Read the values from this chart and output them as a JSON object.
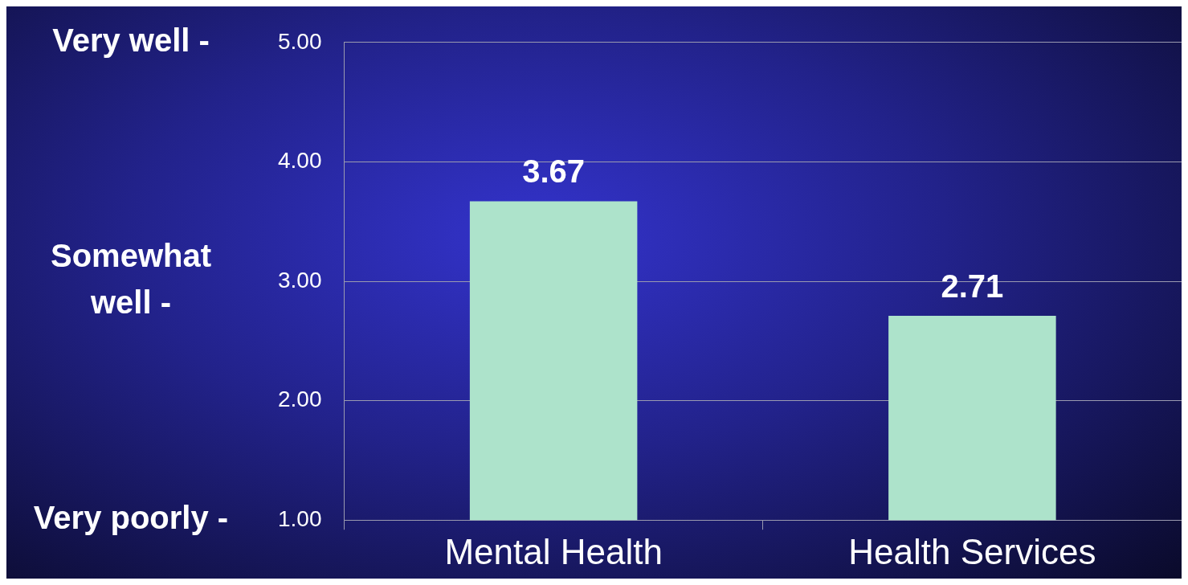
{
  "chart_data": {
    "type": "bar",
    "categories": [
      "Mental Health",
      "Health Services"
    ],
    "values": [
      3.67,
      2.71
    ],
    "color": "#ade3cb",
    "ylim": [
      1,
      5
    ],
    "yticks": [
      {
        "value": 1,
        "label": "1.00"
      },
      {
        "value": 2,
        "label": "2.00"
      },
      {
        "value": 3,
        "label": "3.00"
      },
      {
        "value": 4,
        "label": "4.00"
      },
      {
        "value": 5,
        "label": "5.00"
      }
    ],
    "annotations": [
      "Very well -",
      "Somewhat well -",
      "Very poorly -"
    ],
    "grid": "y",
    "data_labels": true,
    "legend": false
  }
}
